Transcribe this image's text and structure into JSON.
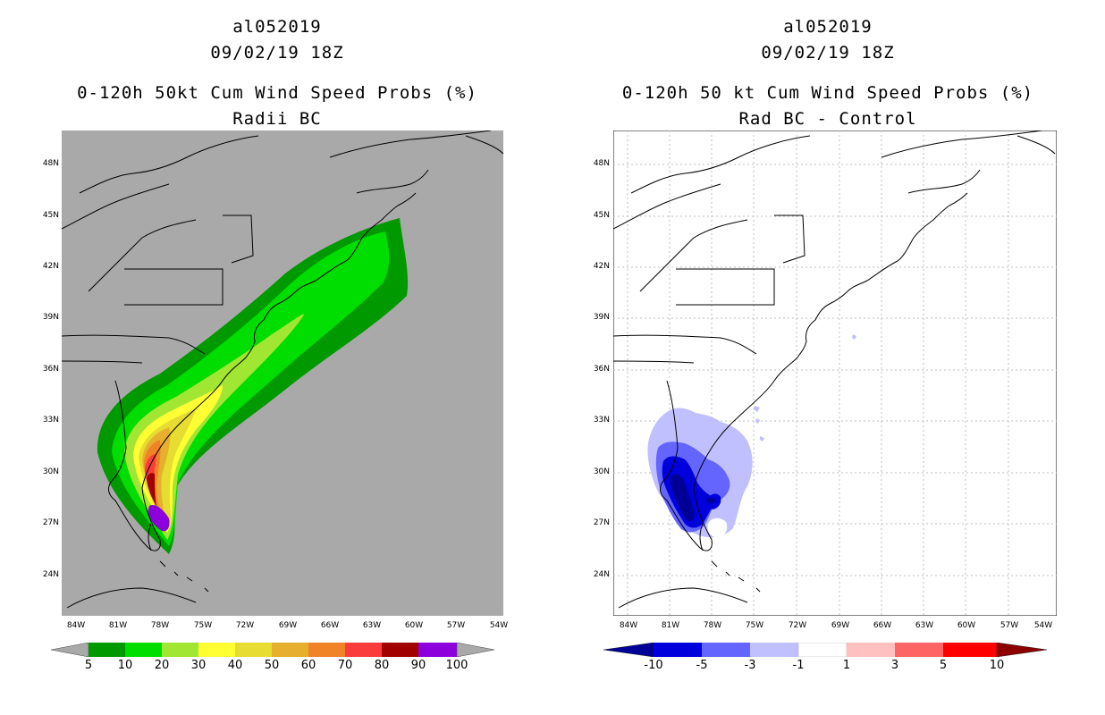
{
  "left": {
    "title_line1": "al052019",
    "title_line2": "09/02/19 18Z",
    "title_line3": "0-120h 50kt Cum Wind Speed Probs (%)",
    "title_line4": "Radii BC",
    "background": "#a9a9a9",
    "colorbar": {
      "colors": [
        "#009900",
        "#00dd00",
        "#a0e632",
        "#ffff33",
        "#e6dc32",
        "#e6af2d",
        "#f08228",
        "#fa3c3c",
        "#a00000",
        "#8c00dc"
      ],
      "under_color": "#a9a9a9",
      "over_color": "#a9a9a9",
      "labels": [
        "5",
        "10",
        "20",
        "30",
        "40",
        "50",
        "60",
        "70",
        "80",
        "90",
        "100"
      ]
    }
  },
  "right": {
    "title_line1": "al052019",
    "title_line2": "09/02/19 18Z",
    "title_line3": "0-120h 50 kt Cum Wind Speed Probs (%)",
    "title_line4": "Rad BC - Control",
    "background": "#ffffff",
    "colorbar": {
      "colors": [
        "#0000dc",
        "#6464ff",
        "#c0c0ff",
        "#ffffff",
        "#ffc0c0",
        "#ff6464",
        "#ff0000"
      ],
      "under_color": "#000096",
      "over_color": "#8c0000",
      "labels": [
        "-10",
        "-5",
        "-3",
        "-1",
        "1",
        "3",
        "5",
        "10"
      ]
    }
  },
  "axes": {
    "lat_labels": [
      "48N",
      "45N",
      "42N",
      "39N",
      "36N",
      "33N",
      "30N",
      "27N",
      "24N"
    ],
    "lon_labels": [
      "84W",
      "81W",
      "78W",
      "75W",
      "72W",
      "69W",
      "66W",
      "63W",
      "60W",
      "57W",
      "54W"
    ]
  }
}
